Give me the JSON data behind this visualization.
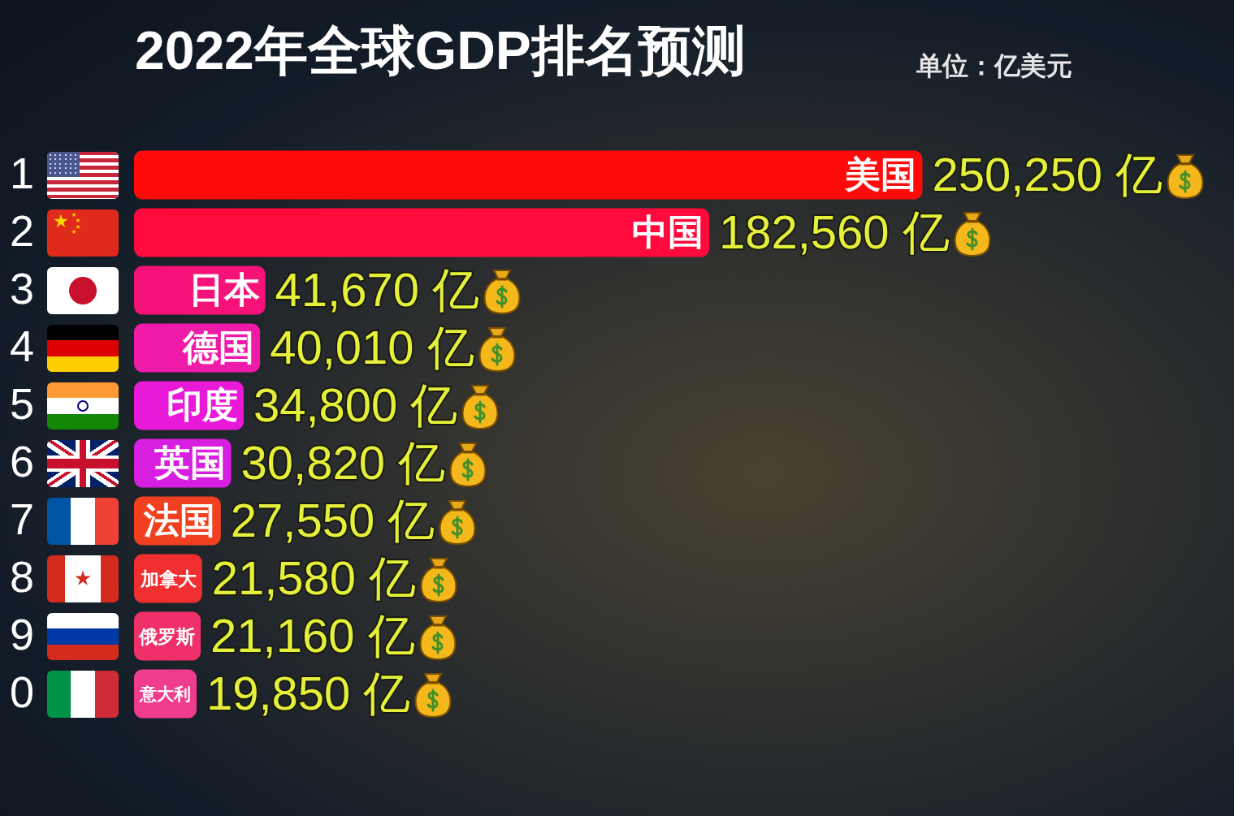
{
  "chart_data": {
    "type": "bar",
    "orientation": "horizontal",
    "title": "2022年全球GDP排名预测",
    "subtitle": "单位：亿美元",
    "categories": [
      "美国",
      "中国",
      "日本",
      "德国",
      "印度",
      "英国",
      "法国",
      "加拿大",
      "俄罗斯",
      "意大利"
    ],
    "values": [
      250250,
      182560,
      41670,
      40010,
      34800,
      30820,
      27550,
      21580,
      21160,
      19850
    ],
    "colors": [
      "#ff0a0a",
      "#ff0a3c",
      "#f5137a",
      "#f01aa8",
      "#e81ad8",
      "#d81ee0",
      "#f04020",
      "#f03030",
      "#f0306a",
      "#f03c8c"
    ],
    "value_labels": [
      "250,250 亿",
      "182,560 亿",
      "41,670 亿",
      "40,010 亿",
      "34,800 亿",
      "30,820 亿",
      "27,550 亿",
      "21,580 亿",
      "21,160 亿",
      "19,850 亿"
    ],
    "annotations": [
      "1",
      "2",
      "3",
      "4",
      "5",
      "6",
      "7",
      "8",
      "9",
      "0"
    ]
  }
}
